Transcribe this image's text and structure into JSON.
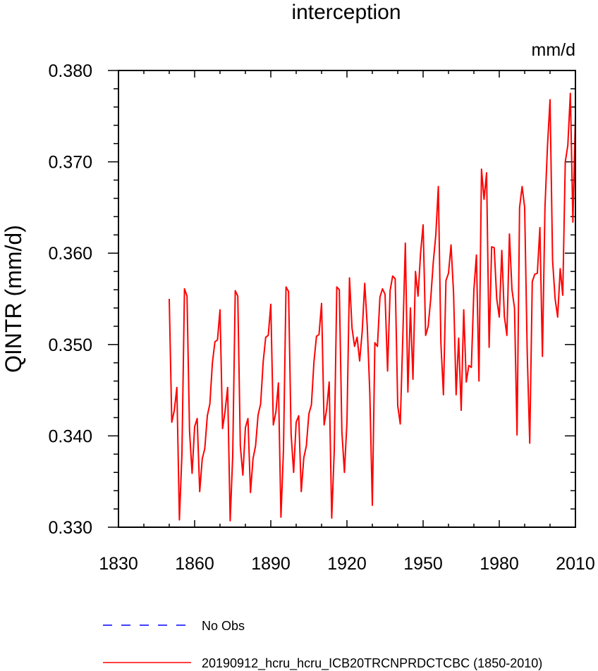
{
  "chart_data": {
    "type": "line",
    "title": "interception",
    "units": "mm/d",
    "xlabel": "",
    "ylabel": "QINTR  (mm/d)",
    "xlim": [
      1830,
      2010
    ],
    "ylim": [
      0.33,
      0.38
    ],
    "xticks": [
      1830,
      1860,
      1890,
      1920,
      1950,
      1980,
      2010
    ],
    "xtick_labels": [
      "1830",
      "1860",
      "1890",
      "1920",
      "1950",
      "1980",
      "2010"
    ],
    "yticks": [
      0.33,
      0.34,
      0.35,
      0.36,
      0.37,
      0.38
    ],
    "ytick_labels": [
      "0.330",
      "0.340",
      "0.350",
      "0.360",
      "0.370",
      "0.380"
    ],
    "grid": false,
    "series": [
      {
        "name": "20190912_hcru_hcru_ICB20TRCNPRDCTCBC (1850-2010)",
        "color": "#ff0000",
        "style": "solid",
        "x_start": 1850,
        "x_step": 1,
        "values": [
          0.355,
          0.3415,
          0.3428,
          0.3453,
          0.3308,
          0.338,
          0.3561,
          0.3553,
          0.3405,
          0.3359,
          0.341,
          0.3419,
          0.3339,
          0.3375,
          0.3386,
          0.3422,
          0.3435,
          0.348,
          0.3503,
          0.3505,
          0.3538,
          0.3408,
          0.3427,
          0.3453,
          0.3307,
          0.3378,
          0.3559,
          0.3553,
          0.3389,
          0.3357,
          0.3409,
          0.3419,
          0.3338,
          0.3375,
          0.3389,
          0.3423,
          0.3435,
          0.3481,
          0.3508,
          0.351,
          0.3544,
          0.3412,
          0.3426,
          0.3458,
          0.3311,
          0.3385,
          0.3563,
          0.3558,
          0.3402,
          0.336,
          0.3415,
          0.3422,
          0.3339,
          0.3376,
          0.3389,
          0.3424,
          0.3434,
          0.3481,
          0.3509,
          0.3511,
          0.3545,
          0.3412,
          0.3429,
          0.3459,
          0.331,
          0.3384,
          0.3563,
          0.356,
          0.3405,
          0.336,
          0.3415,
          0.3573,
          0.3518,
          0.3498,
          0.3508,
          0.3482,
          0.3514,
          0.3567,
          0.352,
          0.3447,
          0.3324,
          0.3502,
          0.3498,
          0.3552,
          0.3561,
          0.3555,
          0.3471,
          0.3559,
          0.3575,
          0.3572,
          0.3433,
          0.3413,
          0.3508,
          0.3611,
          0.3448,
          0.354,
          0.3462,
          0.358,
          0.3553,
          0.36,
          0.3631,
          0.351,
          0.352,
          0.355,
          0.359,
          0.362,
          0.3673,
          0.3502,
          0.3445,
          0.357,
          0.3578,
          0.3609,
          0.3556,
          0.3445,
          0.3507,
          0.3428,
          0.3538,
          0.3459,
          0.3477,
          0.3475,
          0.356,
          0.3598,
          0.346,
          0.3692,
          0.3659,
          0.3688,
          0.3497,
          0.3607,
          0.3606,
          0.355,
          0.353,
          0.3603,
          0.3531,
          0.351,
          0.3621,
          0.356,
          0.354,
          0.3401,
          0.365,
          0.3673,
          0.365,
          0.3492,
          0.3392,
          0.3569,
          0.3577,
          0.3578,
          0.3628,
          0.3487,
          0.365,
          0.3718,
          0.3768,
          0.3592,
          0.355,
          0.353,
          0.3583,
          0.3554,
          0.37,
          0.3718,
          0.3775,
          0.3634,
          0.375
        ]
      }
    ],
    "legend": [
      {
        "label": "No Obs",
        "color": "#0000ff",
        "style": "dashed"
      },
      {
        "label": "20190912_hcru_hcru_ICB20TRCNPRDCTCBC (1850-2010)",
        "color": "#ff0000",
        "style": "solid"
      }
    ],
    "legend_position": "bottom"
  }
}
